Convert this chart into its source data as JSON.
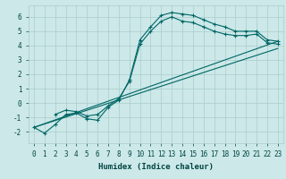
{
  "background_color": "#cce8e8",
  "grid_color": "#aacccc",
  "line_color": "#006666",
  "marker": "+",
  "xlabel": "Humidex (Indice chaleur)",
  "ylim": [
    -2.8,
    6.8
  ],
  "xlim": [
    -0.5,
    23.5
  ],
  "yticks": [
    -2,
    -1,
    0,
    1,
    2,
    3,
    4,
    5,
    6
  ],
  "xtick_labels": [
    "0",
    "1",
    "2",
    "3",
    "4",
    "5",
    "6",
    "7",
    "8",
    "9",
    "10",
    "11",
    "12",
    "13",
    "14",
    "15",
    "16",
    "17",
    "18",
    "19",
    "20",
    "21",
    "22",
    "23"
  ],
  "series1_x": [
    0,
    1,
    2,
    3,
    4,
    5,
    6,
    7,
    8,
    9,
    10,
    11,
    12,
    13,
    14,
    15,
    16,
    17,
    18,
    19,
    20,
    21,
    22,
    23
  ],
  "series1_y": [
    -1.7,
    -2.1,
    -1.5,
    -0.8,
    -0.7,
    -1.1,
    -1.2,
    -0.3,
    0.2,
    1.6,
    4.4,
    5.3,
    6.1,
    6.3,
    6.2,
    6.1,
    5.8,
    5.5,
    5.3,
    5.0,
    5.0,
    5.0,
    4.4,
    4.3
  ],
  "series2_x": [
    0,
    23
  ],
  "series2_y": [
    -1.7,
    4.3
  ],
  "series3_x": [
    0,
    23
  ],
  "series3_y": [
    -1.7,
    3.8
  ],
  "series4_x": [
    2,
    3,
    4,
    5,
    6,
    7,
    8,
    9,
    10,
    11,
    12,
    13,
    14,
    15,
    16,
    17,
    18,
    19,
    20,
    21,
    22,
    23
  ],
  "series4_y": [
    -0.8,
    -0.5,
    -0.6,
    -0.9,
    -0.8,
    -0.2,
    0.3,
    1.5,
    4.1,
    5.0,
    5.7,
    6.0,
    5.7,
    5.6,
    5.3,
    5.0,
    4.8,
    4.7,
    4.7,
    4.8,
    4.2,
    4.1
  ],
  "xlabel_fontsize": 6.5,
  "tick_fontsize": 5.5,
  "lw": 0.8,
  "ms": 2.5
}
